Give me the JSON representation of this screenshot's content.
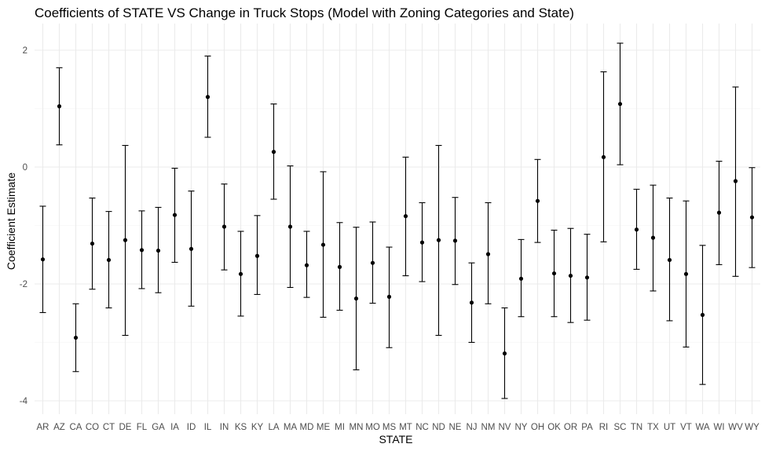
{
  "chart_data": {
    "type": "scatter",
    "title": "Coefficients of STATE VS Change in Truck Stops (Model with Zoning Categories and State)",
    "xlabel": "STATE",
    "ylabel": "Coefficient Estimate",
    "ylim": [
      -4.15,
      2.3
    ],
    "yticks": [
      -4,
      -2,
      0,
      2
    ],
    "grid": true,
    "categories": [
      "AR",
      "AZ",
      "CA",
      "CO",
      "CT",
      "DE",
      "FL",
      "GA",
      "IA",
      "ID",
      "IL",
      "IN",
      "KS",
      "KY",
      "LA",
      "MA",
      "MD",
      "ME",
      "MI",
      "MN",
      "MO",
      "MS",
      "MT",
      "NC",
      "ND",
      "NE",
      "NJ",
      "NM",
      "NV",
      "NY",
      "OH",
      "OK",
      "OR",
      "PA",
      "RI",
      "SC",
      "TN",
      "TX",
      "UT",
      "VT",
      "WA",
      "WI",
      "WV",
      "WY"
    ],
    "series": [
      {
        "estimate": [
          -1.58,
          1.04,
          -2.92,
          -1.31,
          -1.59,
          -1.25,
          -1.42,
          -1.43,
          -0.82,
          -1.4,
          1.2,
          -1.02,
          -1.83,
          -1.52,
          0.26,
          -1.02,
          -1.68,
          -1.33,
          -1.71,
          -2.25,
          -1.64,
          -2.22,
          -0.84,
          -1.29,
          -1.25,
          -1.26,
          -2.32,
          -1.49,
          -3.19,
          -1.91,
          -0.58,
          -1.82,
          -1.86,
          -1.89,
          0.17,
          1.08,
          -1.07,
          -1.21,
          -1.59,
          -1.83,
          -2.53,
          -0.78,
          -0.24,
          -0.86
        ],
        "lower": [
          -2.49,
          0.38,
          -3.5,
          -2.09,
          -2.41,
          -2.88,
          -2.08,
          -2.15,
          -1.63,
          -2.38,
          0.51,
          -1.76,
          -2.55,
          -2.18,
          -0.55,
          -2.06,
          -2.23,
          -2.57,
          -2.45,
          -3.47,
          -2.33,
          -3.09,
          -1.86,
          -1.96,
          -2.88,
          -2.01,
          -3.0,
          -2.34,
          -3.96,
          -2.56,
          -1.29,
          -2.56,
          -2.66,
          -2.62,
          -1.28,
          0.04,
          -1.75,
          -2.12,
          -2.63,
          -3.08,
          -3.72,
          -1.67,
          -1.87,
          -1.72
        ],
        "upper": [
          -0.67,
          1.7,
          -2.34,
          -0.53,
          -0.76,
          0.37,
          -0.75,
          -0.69,
          -0.02,
          -0.41,
          1.9,
          -0.29,
          -1.1,
          -0.83,
          1.08,
          0.02,
          -1.1,
          -0.08,
          -0.95,
          -1.03,
          -0.94,
          -1.37,
          0.17,
          -0.61,
          0.37,
          -0.52,
          -1.64,
          -0.61,
          -2.41,
          -1.24,
          0.13,
          -1.08,
          -1.05,
          -1.15,
          1.63,
          2.12,
          -0.38,
          -0.31,
          -0.53,
          -0.58,
          -1.34,
          0.1,
          1.37,
          -0.01
        ]
      }
    ]
  }
}
